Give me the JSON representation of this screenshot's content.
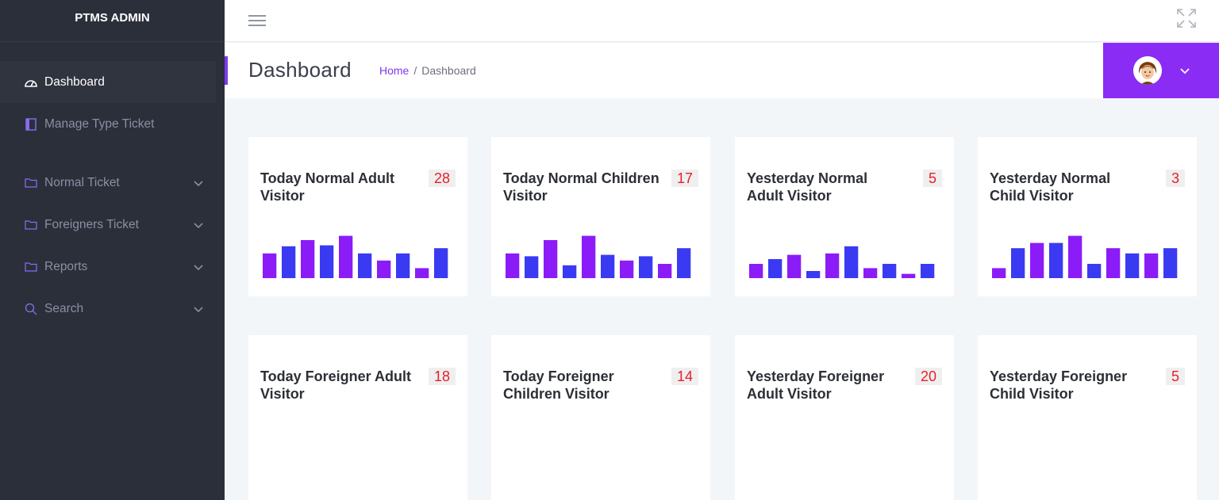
{
  "app": {
    "brand": "PTMS ADMIN"
  },
  "sidebar": {
    "items": [
      {
        "label": "Dashboard",
        "icon": "dashboard-icon",
        "active": true
      },
      {
        "label": "Manage Type Ticket",
        "icon": "book-icon"
      },
      {
        "label": "Normal Ticket",
        "icon": "folder-icon",
        "expandable": true
      },
      {
        "label": "Foreigners Ticket",
        "icon": "folder-icon",
        "expandable": true
      },
      {
        "label": "Reports",
        "icon": "folder-icon",
        "expandable": true
      },
      {
        "label": "Search",
        "icon": "search-icon",
        "expandable": true
      }
    ]
  },
  "header": {
    "title": "Dashboard",
    "breadcrumb": {
      "home": "Home",
      "separator": "/",
      "current": "Dashboard"
    }
  },
  "colors": {
    "accent": "#8b2cf5",
    "sidebar": "#2b2f3a",
    "bar_purple": "#8b1cf7",
    "bar_blue": "#3a3af2",
    "count": "#e8202a"
  },
  "cards": [
    {
      "title": "Today Normal Adult Visitor",
      "count": "28",
      "bars": [
        0.52,
        0.67,
        0.8,
        0.69,
        0.89,
        0.52,
        0.37,
        0.52,
        0.21,
        0.63
      ]
    },
    {
      "title": "Today Normal Children Visitor",
      "count": "17",
      "bars": [
        0.52,
        0.46,
        0.8,
        0.27,
        0.89,
        0.49,
        0.37,
        0.46,
        0.3,
        0.63
      ]
    },
    {
      "title": "Yesterday Normal Adult Visitor",
      "count": "5",
      "bars": [
        0.3,
        0.4,
        0.49,
        0.15,
        0.52,
        0.67,
        0.21,
        0.3,
        0.09,
        0.3
      ]
    },
    {
      "title": "Yesterday Normal Child Visitor",
      "count": "3",
      "bars": [
        0.21,
        0.63,
        0.74,
        0.74,
        0.89,
        0.3,
        0.63,
        0.52,
        0.52,
        0.63
      ]
    },
    {
      "title": "Today Foreigner Adult Visitor",
      "count": "18",
      "bars": []
    },
    {
      "title": "Today Foreigner Children Visitor",
      "count": "14",
      "bars": []
    },
    {
      "title": "Yesterday Foreigner Adult Visitor",
      "count": "20",
      "bars": []
    },
    {
      "title": "Yesterday Foreigner Child Visitor",
      "count": "5",
      "bars": []
    }
  ]
}
